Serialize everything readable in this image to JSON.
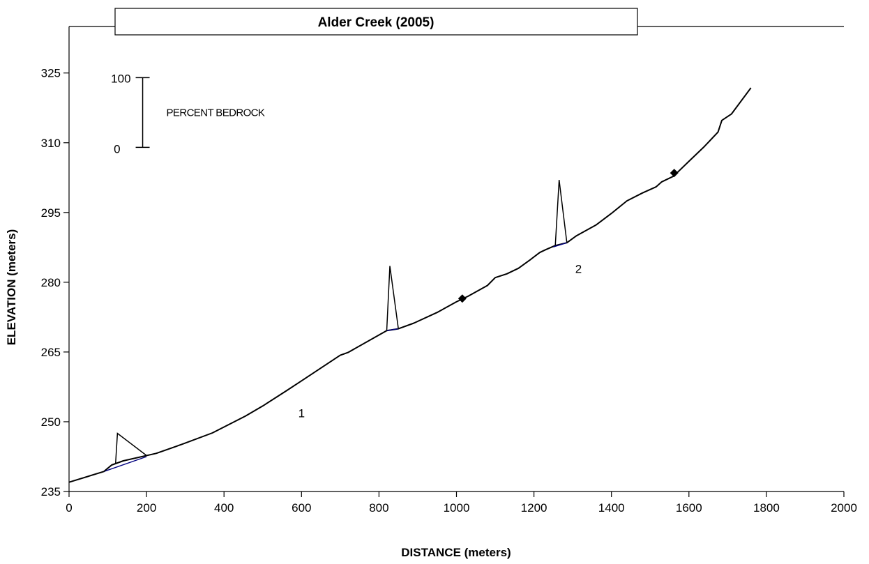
{
  "chart_data": {
    "type": "line",
    "title": "Alder Creek (2005)",
    "xlabel": "DISTANCE (meters)",
    "ylabel": "ELEVATION (meters)",
    "xlim": [
      0,
      2000
    ],
    "ylim": [
      235,
      335
    ],
    "x_ticks": [
      "0",
      "200",
      "400",
      "600",
      "800",
      "1000",
      "1200",
      "1400",
      "1600",
      "1800",
      "2000"
    ],
    "y_ticks": [
      "235",
      "250",
      "265",
      "280",
      "295",
      "310",
      "325"
    ],
    "grid": false,
    "series": [
      {
        "color": "#000000",
        "points": [
          [
            0,
            237
          ],
          [
            90,
            239.3
          ],
          [
            110,
            240.7
          ],
          [
            140,
            241.6
          ],
          [
            225,
            243.2
          ],
          [
            290,
            245.1
          ],
          [
            370,
            247.6
          ],
          [
            455,
            251.2
          ],
          [
            500,
            253.4
          ],
          [
            560,
            256.6
          ],
          [
            600,
            258.8
          ],
          [
            700,
            264.3
          ],
          [
            720,
            264.9
          ],
          [
            820,
            269.6
          ],
          [
            850,
            270.0
          ],
          [
            890,
            271.2
          ],
          [
            950,
            273.5
          ],
          [
            1000,
            275.8
          ],
          [
            1030,
            277.0
          ],
          [
            1080,
            279.3
          ],
          [
            1100,
            281.0
          ],
          [
            1130,
            281.8
          ],
          [
            1160,
            283.0
          ],
          [
            1190,
            284.8
          ],
          [
            1215,
            286.4
          ],
          [
            1230,
            287.0
          ],
          [
            1255,
            287.9
          ],
          [
            1285,
            288.5
          ],
          [
            1310,
            290.0
          ],
          [
            1360,
            292.3
          ],
          [
            1400,
            294.8
          ],
          [
            1440,
            297.5
          ],
          [
            1480,
            299.2
          ],
          [
            1515,
            300.5
          ],
          [
            1530,
            301.6
          ],
          [
            1560,
            302.8
          ],
          [
            1600,
            306.0
          ],
          [
            1640,
            309.2
          ],
          [
            1675,
            312.3
          ],
          [
            1685,
            314.8
          ],
          [
            1710,
            316.2
          ],
          [
            1760,
            321.8
          ]
        ]
      },
      {
        "color": "#00007f",
        "points": [
          [
            90,
            239.3
          ],
          [
            200,
            242.5
          ]
        ]
      },
      {
        "color": "#00007f",
        "points": [
          [
            820,
            269.6
          ],
          [
            850,
            270.0
          ]
        ]
      },
      {
        "color": "#00007f",
        "points": [
          [
            1250,
            287.6
          ],
          [
            1285,
            288.5
          ]
        ]
      }
    ],
    "bedrock_spikes": [
      {
        "start": 90,
        "peak_x": 125,
        "peak_elev": 247.5,
        "end": 200,
        "prefix": [
          [
            110,
            240.7
          ],
          [
            120,
            241.0
          ]
        ]
      },
      {
        "start": 820,
        "peak_x": 828,
        "peak_elev": 283.5,
        "end": 850
      },
      {
        "start": 1255,
        "peak_x": 1265,
        "peak_elev": 302.0,
        "end": 1285
      }
    ],
    "markers": [
      {
        "x": 1015,
        "y": 276.5,
        "shape": "diamond"
      },
      {
        "x": 1562,
        "y": 303.5,
        "shape": "diamond"
      }
    ],
    "annotations": [
      {
        "text": "1",
        "x": 600,
        "y": 251
      },
      {
        "text": "2",
        "x": 1315,
        "y": 282
      }
    ],
    "scale_bar": {
      "label": "PERCENT BEDROCK",
      "top_label": "100",
      "bottom_label": "0",
      "x": 190,
      "y_top": 324,
      "y_bottom": 309
    }
  }
}
